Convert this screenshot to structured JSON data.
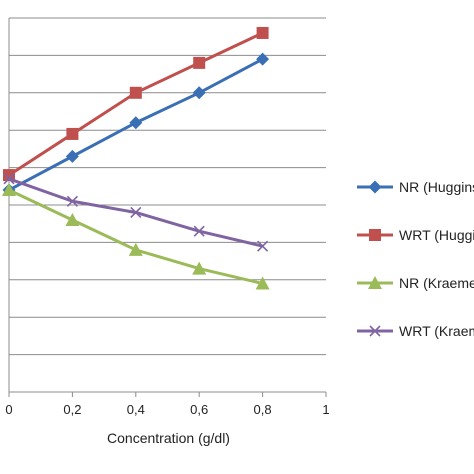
{
  "chart_data": {
    "type": "line",
    "xlabel": "Concentration (g/dl)",
    "ylabel": "",
    "x_ticks": [
      "0",
      "0,2",
      "0,4",
      "0,6",
      "0,8",
      "1"
    ],
    "xlim": [
      0,
      1
    ],
    "ylim": [
      0,
      10
    ],
    "grid": "horizontal",
    "legend_position": "right",
    "series": [
      {
        "name": "NR (Huggins)",
        "color": "#3B6FB5",
        "marker": "diamond",
        "x": [
          0,
          0.2,
          0.4,
          0.6,
          0.8
        ],
        "y": [
          5.4,
          6.3,
          7.2,
          8.0,
          8.9
        ]
      },
      {
        "name": "WRT (Huggins)",
        "color": "#C0504D",
        "marker": "square",
        "x": [
          0,
          0.2,
          0.4,
          0.6,
          0.8
        ],
        "y": [
          5.8,
          6.9,
          8.0,
          8.8,
          9.6
        ]
      },
      {
        "name": "NR (Kraemer)",
        "color": "#9BBB59",
        "marker": "triangle",
        "x": [
          0,
          0.2,
          0.4,
          0.6,
          0.8
        ],
        "y": [
          5.4,
          4.6,
          3.8,
          3.3,
          2.9
        ]
      },
      {
        "name": "WRT (Kraemer)",
        "color": "#8064A2",
        "marker": "x",
        "x": [
          0,
          0.2,
          0.4,
          0.6,
          0.8
        ],
        "y": [
          5.7,
          5.1,
          4.8,
          4.3,
          3.9
        ]
      }
    ]
  }
}
